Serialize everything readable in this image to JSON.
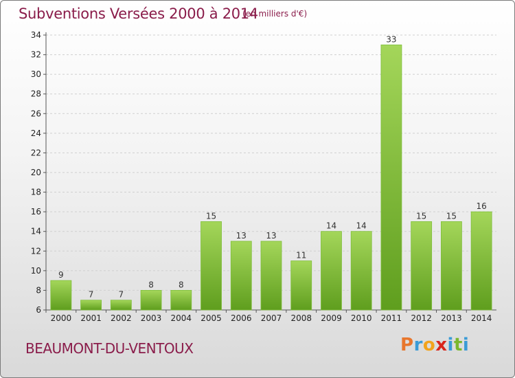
{
  "header": {
    "title": "Subventions Versées 2000 à 2014",
    "subtitle": "(en milliers d'€)"
  },
  "footer": {
    "commune": "BEAUMONT-DU-VENTOUX",
    "logo": [
      "P",
      "r",
      "o",
      "x",
      "i",
      "t",
      "i"
    ]
  },
  "colors": {
    "title": "#8a1c4a",
    "bar_light": "#a4d65a",
    "bar_dark": "#5f9e1e",
    "logo": [
      "#e8762c",
      "#3a9bd6",
      "#f2a31b",
      "#d9261c",
      "#3a9bd6",
      "#7bb72e",
      "#3a9bd6"
    ]
  },
  "chart_data": {
    "type": "bar",
    "title": "Subventions Versées 2000 à 2014",
    "subtitle": "(en milliers d'€)",
    "categories": [
      "2000",
      "2001",
      "2002",
      "2003",
      "2004",
      "2005",
      "2006",
      "2007",
      "2008",
      "2009",
      "2010",
      "2011",
      "2012",
      "2013",
      "2014"
    ],
    "values": [
      9,
      7,
      7,
      8,
      8,
      15,
      13,
      13,
      11,
      14,
      14,
      33,
      15,
      15,
      16
    ],
    "ylim": [
      6,
      34
    ],
    "yticks": [
      6,
      8,
      10,
      12,
      14,
      16,
      18,
      20,
      22,
      24,
      26,
      28,
      30,
      32,
      34
    ],
    "grid": true,
    "xlabel": "",
    "ylabel": ""
  }
}
